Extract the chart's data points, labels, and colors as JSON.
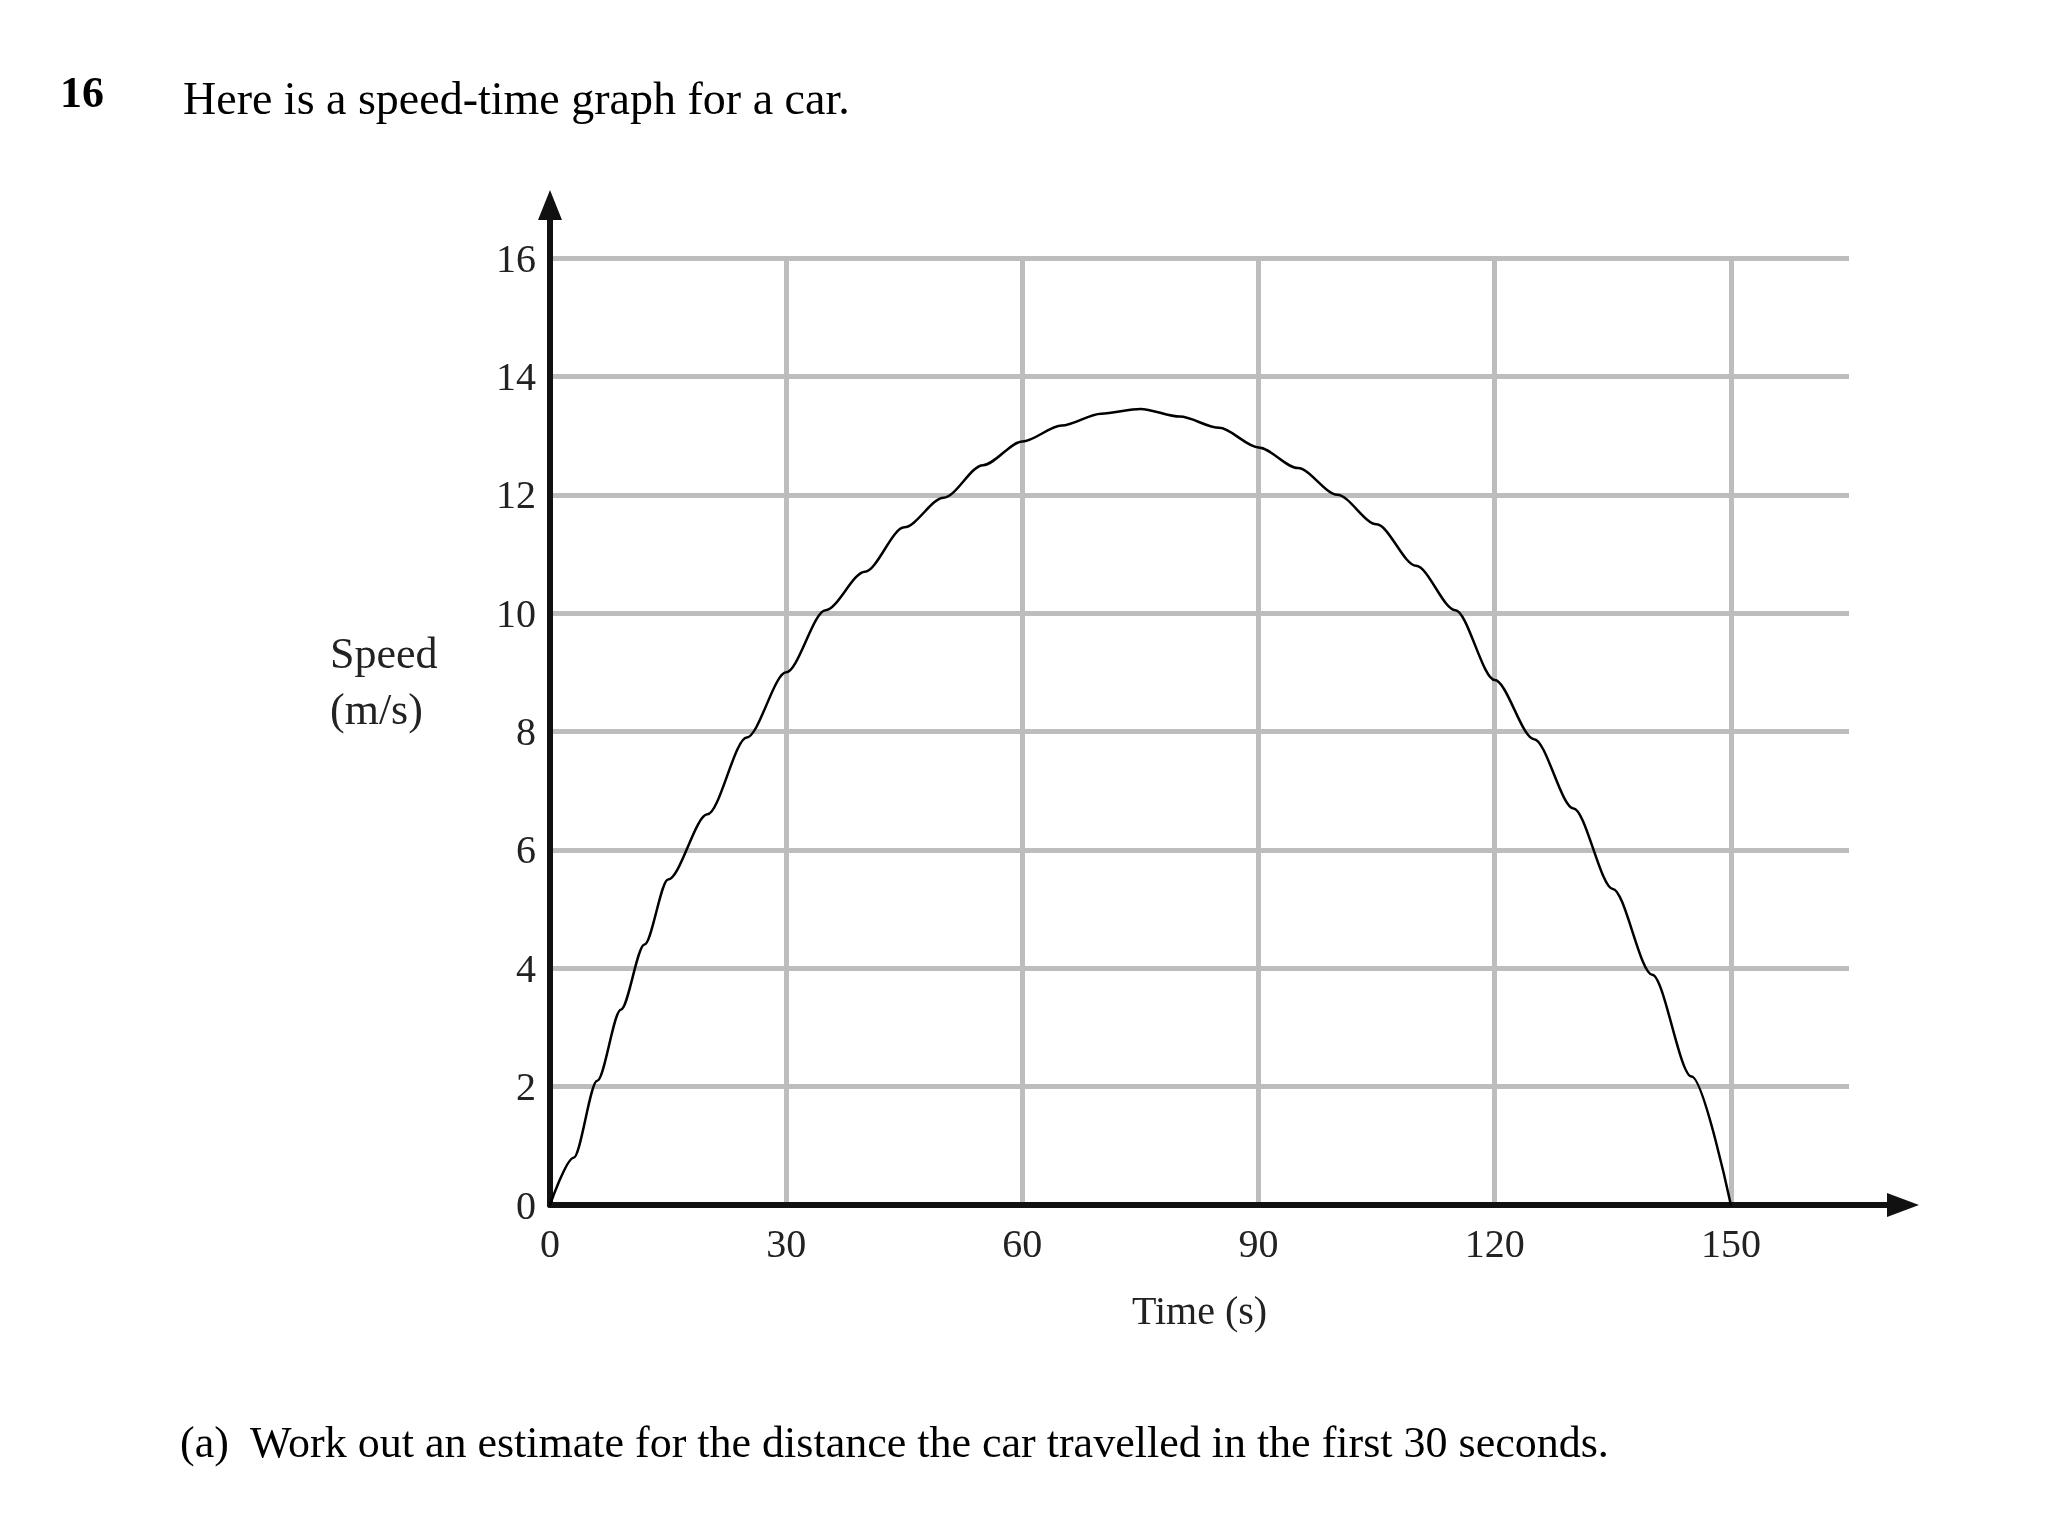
{
  "chart_data": {
    "type": "line",
    "title": "Here is a speed-time graph for a car.",
    "xlabel": "Time (s)",
    "ylabel": "Speed\n(m/s)",
    "annotations": [
      "16",
      "(a)  Work out an estimate for the distance the car travelled in the first 30 seconds."
    ],
    "x": [
      0,
      3,
      6,
      9,
      12,
      15,
      20,
      25,
      30,
      35,
      40,
      45,
      50,
      55,
      60,
      65,
      70,
      75,
      80,
      85,
      90,
      95,
      100,
      105,
      110,
      115,
      120,
      125,
      130,
      135,
      140,
      145,
      150
    ],
    "series": [
      {
        "color": "#000000",
        "values": [
          0,
          0.8,
          2.1,
          3.3,
          4.4,
          5.5,
          6.6,
          7.9,
          9.0,
          10.05,
          10.7,
          11.45,
          11.95,
          12.5,
          12.9,
          13.17,
          13.37,
          13.45,
          13.32,
          13.13,
          12.8,
          12.45,
          12.0,
          11.5,
          10.8,
          10.05,
          8.87,
          7.87,
          6.7,
          5.34,
          3.89,
          2.17,
          0
        ]
      }
    ],
    "xlim": [
      0,
      165
    ],
    "xticks": [
      0,
      30,
      60,
      90,
      120,
      150
    ],
    "ylim": [
      0,
      16
    ],
    "yticks": [
      0,
      2,
      4,
      6,
      8,
      10,
      12,
      14,
      16
    ],
    "grid": true,
    "marker": "none",
    "line_style": "solid"
  }
}
